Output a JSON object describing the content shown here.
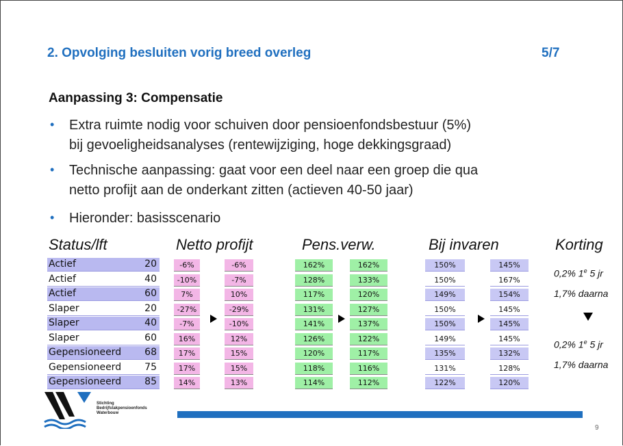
{
  "header": {
    "title": "2. Opvolging besluiten vorig breed overleg",
    "page": "5/7"
  },
  "section_title": "Aanpassing 3: Compensatie",
  "bullets": [
    [
      "Extra ruimte nodig voor schuiven door pensioenfondsbestuur (5%)",
      "bij gevoeligheidsanalyses (rentewijziging, hoge dekkingsgraad)"
    ],
    [
      "Technische aanpassing: gaat voor een deel naar een groep die qua",
      "netto profijt aan de onderkant zitten (actieven 40-50 jaar)"
    ],
    [
      "Hieronder: basisscenario"
    ]
  ],
  "table": {
    "headers": [
      "Status/lft",
      "Netto profijt",
      "Pens.verw.",
      "Bij invaren",
      "Korting"
    ],
    "rows": [
      {
        "status": "Actief",
        "age": 20,
        "netto": [
          "-6%",
          "-6%"
        ],
        "pens": [
          "162%",
          "162%"
        ],
        "invaren": [
          "150%",
          "145%"
        ]
      },
      {
        "status": "Actief",
        "age": 40,
        "netto": [
          "-10%",
          "-7%"
        ],
        "pens": [
          "128%",
          "133%"
        ],
        "invaren": [
          "150%",
          "167%"
        ]
      },
      {
        "status": "Actief",
        "age": 60,
        "netto": [
          "7%",
          "10%"
        ],
        "pens": [
          "117%",
          "120%"
        ],
        "invaren": [
          "149%",
          "154%"
        ]
      },
      {
        "status": "Slaper",
        "age": 20,
        "netto": [
          "-27%",
          "-29%"
        ],
        "pens": [
          "131%",
          "127%"
        ],
        "invaren": [
          "150%",
          "145%"
        ]
      },
      {
        "status": "Slaper",
        "age": 40,
        "netto": [
          "-7%",
          "-10%"
        ],
        "pens": [
          "141%",
          "137%"
        ],
        "invaren": [
          "150%",
          "145%"
        ]
      },
      {
        "status": "Slaper",
        "age": 60,
        "netto": [
          "16%",
          "12%"
        ],
        "pens": [
          "126%",
          "122%"
        ],
        "invaren": [
          "149%",
          "145%"
        ]
      },
      {
        "status": "Gepensioneerd",
        "age": 68,
        "netto": [
          "17%",
          "15%"
        ],
        "pens": [
          "120%",
          "117%"
        ],
        "invaren": [
          "135%",
          "132%"
        ]
      },
      {
        "status": "Gepensioneerd",
        "age": 75,
        "netto": [
          "17%",
          "15%"
        ],
        "pens": [
          "118%",
          "116%"
        ],
        "invaren": [
          "131%",
          "128%"
        ]
      },
      {
        "status": "Gepensioneerd",
        "age": 85,
        "netto": [
          "14%",
          "13%"
        ],
        "pens": [
          "114%",
          "112%"
        ],
        "invaren": [
          "122%",
          "120%"
        ]
      }
    ]
  },
  "korting": {
    "before": [
      {
        "pre": "0,2% 1",
        "sup": "e",
        "post": " 5 jr"
      },
      {
        "pre": "1,7% daarna"
      }
    ],
    "after": [
      {
        "pre": "0,2% 1",
        "sup": "e",
        "post": " 5 jr"
      },
      {
        "pre": "1,7% daarna"
      }
    ]
  },
  "logo": [
    "Stichting",
    "Bedrijfstakpensioenfonds",
    "Waterbouw"
  ],
  "page_number": "9"
}
